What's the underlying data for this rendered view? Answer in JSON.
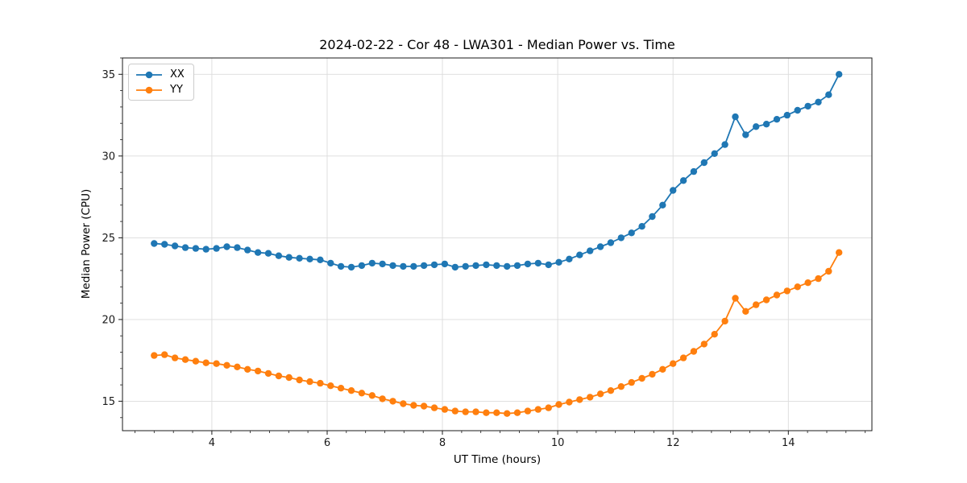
{
  "chart_data": {
    "type": "line",
    "title": "2024-02-22 - Cor 48 - LWA301 - Median Power vs. Time",
    "xlabel": "UT Time (hours)",
    "ylabel": "Median Power (CPU)",
    "xlim": [
      2.45,
      15.45
    ],
    "ylim": [
      13.2,
      36.0
    ],
    "xticks": [
      4,
      6,
      8,
      10,
      12,
      14
    ],
    "yticks": [
      15,
      20,
      25,
      30,
      35
    ],
    "x_minor_step": 0.3333333,
    "y_minor_step": 1,
    "grid": true,
    "legend_position": "upper left",
    "x_start": 3.0,
    "x_step": 0.18,
    "series": [
      {
        "name": "XX",
        "color": "#1f77b4",
        "values": [
          24.65,
          24.6,
          24.5,
          24.4,
          24.35,
          24.3,
          24.35,
          24.45,
          24.4,
          24.25,
          24.1,
          24.05,
          23.9,
          23.8,
          23.75,
          23.7,
          23.65,
          23.45,
          23.25,
          23.2,
          23.3,
          23.45,
          23.4,
          23.3,
          23.25,
          23.25,
          23.3,
          23.35,
          23.4,
          23.2,
          23.25,
          23.3,
          23.35,
          23.3,
          23.25,
          23.3,
          23.4,
          23.45,
          23.35,
          23.5,
          23.7,
          23.95,
          24.2,
          24.45,
          24.7,
          25.0,
          25.3,
          25.7,
          26.3,
          27.0,
          27.9,
          28.5,
          29.05,
          29.6,
          30.15,
          30.7,
          32.4,
          31.3,
          31.8,
          31.95,
          32.25,
          32.5,
          32.8,
          33.05,
          33.3,
          33.75,
          35.0
        ]
      },
      {
        "name": "YY",
        "color": "#ff7f0e",
        "values": [
          17.8,
          17.85,
          17.65,
          17.55,
          17.45,
          17.35,
          17.3,
          17.2,
          17.1,
          16.95,
          16.85,
          16.7,
          16.55,
          16.45,
          16.3,
          16.2,
          16.1,
          15.95,
          15.8,
          15.65,
          15.5,
          15.35,
          15.15,
          15.0,
          14.85,
          14.75,
          14.7,
          14.6,
          14.5,
          14.4,
          14.35,
          14.35,
          14.3,
          14.3,
          14.25,
          14.3,
          14.4,
          14.5,
          14.6,
          14.8,
          14.95,
          15.1,
          15.25,
          15.45,
          15.65,
          15.9,
          16.15,
          16.4,
          16.65,
          16.95,
          17.3,
          17.65,
          18.05,
          18.5,
          19.1,
          19.9,
          21.3,
          20.5,
          20.9,
          21.2,
          21.5,
          21.75,
          22.0,
          22.25,
          22.5,
          22.95,
          24.1
        ]
      }
    ]
  }
}
